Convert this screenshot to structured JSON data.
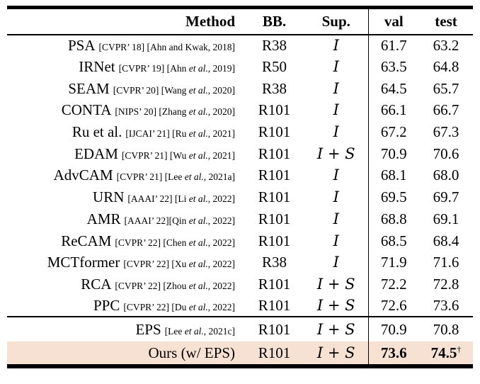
{
  "table": {
    "header": {
      "method": "Method",
      "bb": "BB.",
      "sup": "Sup.",
      "val": "val",
      "test": "test"
    },
    "supervision_symbols": {
      "image": "I",
      "saliency": "S",
      "plus": "+"
    },
    "colors": {
      "highlight_row_bg": "#f7e1d3",
      "rule": "#000000",
      "text": "#000000"
    },
    "rows": [
      {
        "section": "main",
        "method": "PSA",
        "citation": "[CVPR’ 18] [Ahn and Kwak, 2018]",
        "bb": "R38",
        "sup": "I",
        "val": "61.7",
        "test": "63.2",
        "highlight": false,
        "bold_scores": false,
        "test_sup": ""
      },
      {
        "section": "main",
        "method": "IRNet",
        "citation": "[CVPR’ 19] [Ahn et al., 2019]",
        "bb": "R50",
        "sup": "I",
        "val": "63.5",
        "test": "64.8",
        "highlight": false,
        "bold_scores": false,
        "test_sup": ""
      },
      {
        "section": "main",
        "method": "SEAM",
        "citation": "[CVPR’ 20] [Wang et al., 2020]",
        "bb": "R38",
        "sup": "I",
        "val": "64.5",
        "test": "65.7",
        "highlight": false,
        "bold_scores": false,
        "test_sup": ""
      },
      {
        "section": "main",
        "method": "CONTA",
        "citation": "[NIPS’ 20] [Zhang et al., 2020]",
        "bb": "R101",
        "sup": "I",
        "val": "66.1",
        "test": "66.7",
        "highlight": false,
        "bold_scores": false,
        "test_sup": ""
      },
      {
        "section": "main",
        "method": "Ru et al.",
        "citation": "[IJCAI’ 21] [Ru et al., 2021]",
        "bb": "R101",
        "sup": "I",
        "val": "67.2",
        "test": "67.3",
        "highlight": false,
        "bold_scores": false,
        "test_sup": ""
      },
      {
        "section": "main",
        "method": "EDAM",
        "citation": "[CVPR’ 21] [Wu et al., 2021]",
        "bb": "R101",
        "sup": "I+S",
        "val": "70.9",
        "test": "70.6",
        "highlight": false,
        "bold_scores": false,
        "test_sup": ""
      },
      {
        "section": "main",
        "method": "AdvCAM",
        "citation": "[CVPR’ 21] [Lee et al., 2021a]",
        "bb": "R101",
        "sup": "I",
        "val": "68.1",
        "test": "68.0",
        "highlight": false,
        "bold_scores": false,
        "test_sup": ""
      },
      {
        "section": "main",
        "method": "URN",
        "citation": "[AAAI’ 22] [Li et al., 2022]",
        "bb": "R101",
        "sup": "I",
        "val": "69.5",
        "test": "69.7",
        "highlight": false,
        "bold_scores": false,
        "test_sup": ""
      },
      {
        "section": "main",
        "method": "AMR",
        "citation": "[AAAI’ 22][Qin et al., 2022]",
        "bb": "R101",
        "sup": "I",
        "val": "68.8",
        "test": "69.1",
        "highlight": false,
        "bold_scores": false,
        "test_sup": ""
      },
      {
        "section": "main",
        "method": "ReCAM",
        "citation": "[CVPR’ 22] [Chen et al., 2022]",
        "bb": "R101",
        "sup": "I",
        "val": "68.5",
        "test": "68.4",
        "highlight": false,
        "bold_scores": false,
        "test_sup": ""
      },
      {
        "section": "main",
        "method": "MCTformer",
        "citation": "[CVPR’ 22] [Xu et al., 2022]",
        "bb": "R38",
        "sup": "I",
        "val": "71.9",
        "test": "71.6",
        "highlight": false,
        "bold_scores": false,
        "test_sup": ""
      },
      {
        "section": "main",
        "method": "RCA",
        "citation": "[CVPR’ 22] [Zhou et al., 2022]",
        "bb": "R101",
        "sup": "I+S",
        "val": "72.2",
        "test": "72.8",
        "highlight": false,
        "bold_scores": false,
        "test_sup": ""
      },
      {
        "section": "main",
        "method": "PPC",
        "citation": "[CVPR’ 22] [Du et al., 2022]",
        "bb": "R101",
        "sup": "I+S",
        "val": "72.6",
        "test": "73.6",
        "highlight": false,
        "bold_scores": false,
        "test_sup": ""
      },
      {
        "section": "bottom",
        "method": "EPS",
        "citation": "[Lee et al., 2021c]",
        "bb": "R101",
        "sup": "I+S",
        "val": "70.9",
        "test": "70.8",
        "highlight": false,
        "bold_scores": false,
        "test_sup": ""
      },
      {
        "section": "bottom",
        "method": "Ours (w/ EPS)",
        "citation": "",
        "bb": "R101",
        "sup": "I+S",
        "val": "73.6",
        "test": "74.5",
        "highlight": true,
        "bold_scores": true,
        "test_sup": "†"
      }
    ]
  }
}
